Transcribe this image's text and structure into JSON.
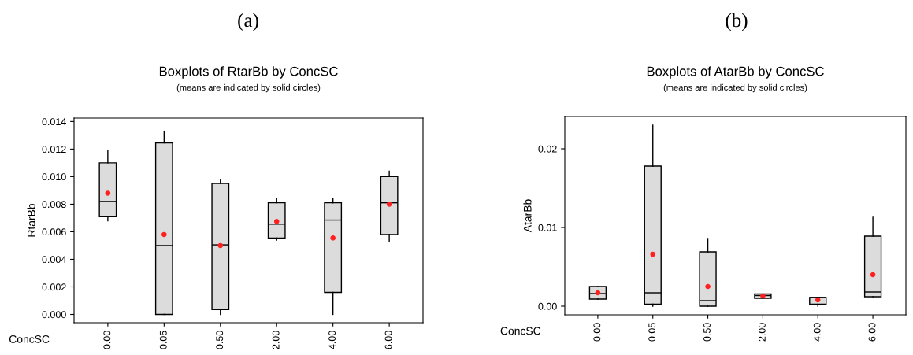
{
  "chart_data": [
    {
      "type": "box",
      "title": "Boxplots of RtarBb by ConcSC",
      "subtitle": "(means are indicated by solid circles)",
      "annotations": [
        "(a)"
      ],
      "xlabel": "ConcSC",
      "ylabel": "RtarBb",
      "categories": [
        "0.00",
        "0.05",
        "0.50",
        "2.00",
        "4.00",
        "6.00"
      ],
      "ylim": [
        -0.0006,
        0.01425
      ],
      "yticks": [
        {
          "value": 0,
          "label": "0.000"
        },
        {
          "value": 0.002,
          "label": "0.002"
        },
        {
          "value": 0.004,
          "label": "0.004"
        },
        {
          "value": 0.006,
          "label": "0.006"
        },
        {
          "value": 0.008,
          "label": "0.008"
        },
        {
          "value": 0.01,
          "label": "0.010"
        },
        {
          "value": 0.012,
          "label": "0.012"
        },
        {
          "value": 0.014,
          "label": "0.014"
        }
      ],
      "grid": false,
      "legend": false,
      "series": [
        {
          "type": "box",
          "color": "#dcdcdc",
          "boxes": [
            {
              "low": 0.0068,
              "q1": 0.0071,
              "median": 0.0082,
              "q3": 0.011,
              "high": 0.0119
            },
            {
              "low": 0.0,
              "q1": 0.0,
              "median": 0.005,
              "q3": 0.01245,
              "high": 0.0133
            },
            {
              "low": 0.0,
              "q1": 0.00035,
              "median": 0.00505,
              "q3": 0.0095,
              "high": 0.0098
            },
            {
              "low": 0.0054,
              "q1": 0.00555,
              "median": 0.00655,
              "q3": 0.0081,
              "high": 0.0084
            },
            {
              "low": 0.0,
              "q1": 0.0016,
              "median": 0.00685,
              "q3": 0.0081,
              "high": 0.0084
            },
            {
              "low": 0.0053,
              "q1": 0.0058,
              "median": 0.0081,
              "q3": 0.01,
              "high": 0.0104
            }
          ]
        },
        {
          "type": "scatter",
          "color": "#ff2020",
          "marker": "circle",
          "x": [
            "0.00",
            "0.05",
            "0.50",
            "2.00",
            "4.00",
            "6.00"
          ],
          "values": [
            0.0088,
            0.0058,
            0.005,
            0.00675,
            0.00555,
            0.008
          ]
        }
      ]
    },
    {
      "type": "box",
      "title": "Boxplots of AtarBb by ConcSC",
      "subtitle": "(means are indicated by solid circles)",
      "annotations": [
        "(b)"
      ],
      "xlabel": "ConcSC",
      "ylabel": "AtarBb",
      "categories": [
        "0.00",
        "0.05",
        "0.50",
        "2.00",
        "4.00",
        "6.00"
      ],
      "ylim": [
        -0.0011,
        0.0241
      ],
      "yticks": [
        {
          "value": 0,
          "label": "0.00"
        },
        {
          "value": 0.01,
          "label": "0.01"
        },
        {
          "value": 0.02,
          "label": "0.02"
        }
      ],
      "grid": false,
      "legend": false,
      "series": [
        {
          "type": "box",
          "color": "#dcdcdc",
          "boxes": [
            {
              "low": 0.0009,
              "q1": 0.0009,
              "median": 0.0016,
              "q3": 0.0025,
              "high": 0.0025
            },
            {
              "low": 0.0,
              "q1": 0.00025,
              "median": 0.0017,
              "q3": 0.0178,
              "high": 0.023
            },
            {
              "low": 0.0,
              "q1": 0.0,
              "median": 0.0007,
              "q3": 0.0069,
              "high": 0.0086
            },
            {
              "low": 0.001,
              "q1": 0.001,
              "median": 0.00135,
              "q3": 0.00155,
              "high": 0.00155
            },
            {
              "low": 0.0,
              "q1": 0.00025,
              "median": 0.0011,
              "q3": 0.0011,
              "high": 0.0011
            },
            {
              "low": 0.0012,
              "q1": 0.0012,
              "median": 0.0018,
              "q3": 0.0089,
              "high": 0.0113
            }
          ]
        },
        {
          "type": "scatter",
          "color": "#ff2020",
          "marker": "circle",
          "x": [
            "0.00",
            "0.05",
            "0.50",
            "2.00",
            "4.00",
            "6.00"
          ],
          "values": [
            0.0017,
            0.0066,
            0.0025,
            0.0013,
            0.0008,
            0.004
          ]
        }
      ]
    }
  ]
}
